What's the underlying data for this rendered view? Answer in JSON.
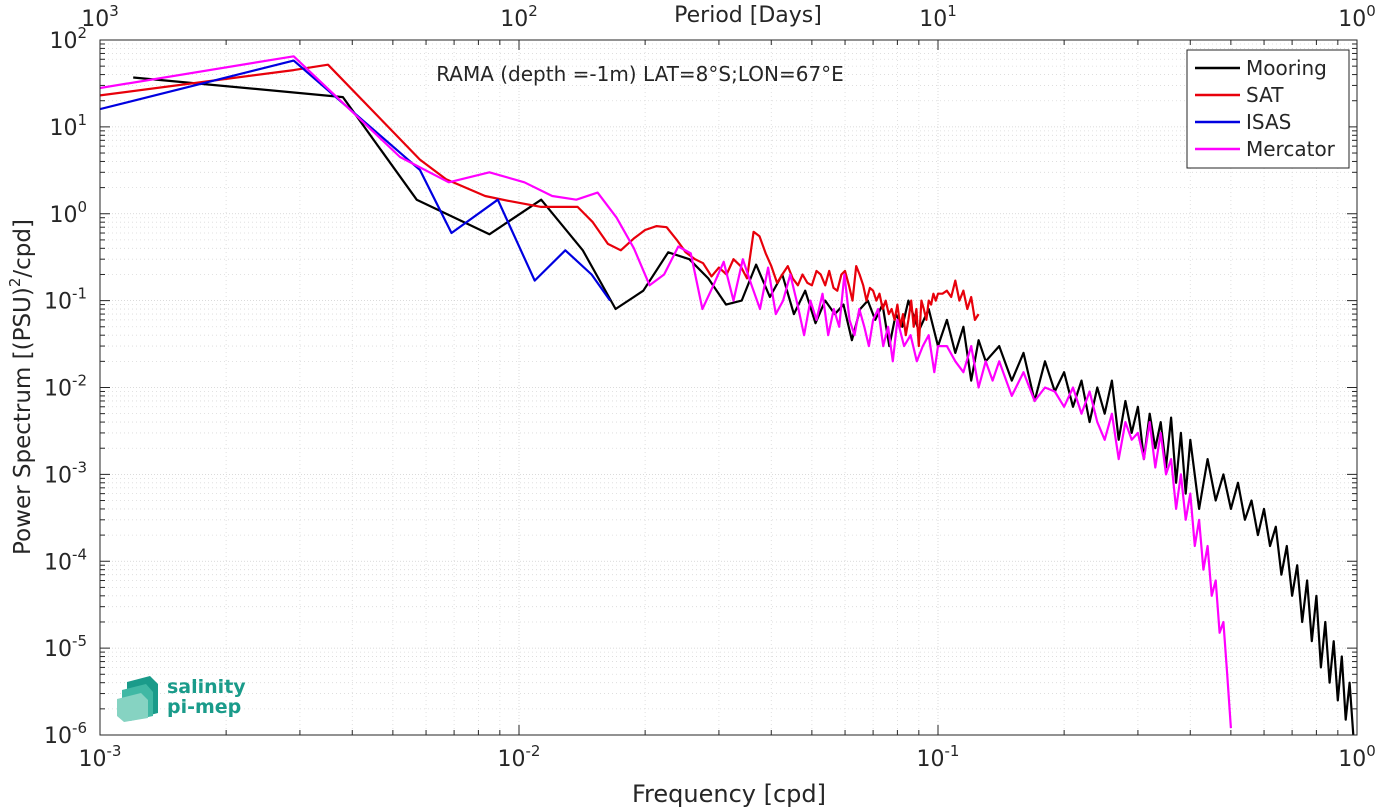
{
  "chart_data": {
    "type": "line",
    "title": "RAMA (depth =-1m) LAT=8°S;LON=67°E",
    "xlabel": "Frequency [cpd]",
    "ylabel_main": "Power Spectrum [(PSU)",
    "ylabel_sup": "2",
    "ylabel_tail": "/cpd]",
    "top_axis_label": "Period [Days]",
    "x_scale": "log",
    "y_scale": "log",
    "xlim": [
      0.001,
      1
    ],
    "ylim": [
      1e-06,
      100
    ],
    "grid": true,
    "minor_grid": true,
    "legend_position": "top-right",
    "x_ticks": [
      {
        "value": 0.001,
        "base": "10",
        "exp": "-3"
      },
      {
        "value": 0.01,
        "base": "10",
        "exp": "-2"
      },
      {
        "value": 0.1,
        "base": "10",
        "exp": "-1"
      },
      {
        "value": 1,
        "base": "10",
        "exp": "0"
      }
    ],
    "y_ticks": [
      {
        "value": 100,
        "base": "10",
        "exp": "2"
      },
      {
        "value": 10,
        "base": "10",
        "exp": "1"
      },
      {
        "value": 1,
        "base": "10",
        "exp": "0"
      },
      {
        "value": 0.1,
        "base": "10",
        "exp": "-1"
      },
      {
        "value": 0.01,
        "base": "10",
        "exp": "-2"
      },
      {
        "value": 0.001,
        "base": "10",
        "exp": "-3"
      },
      {
        "value": 0.0001,
        "base": "10",
        "exp": "-4"
      },
      {
        "value": 1e-05,
        "base": "10",
        "exp": "-5"
      },
      {
        "value": 1e-06,
        "base": "10",
        "exp": "-6"
      }
    ],
    "top_ticks": [
      {
        "freq": 0.001,
        "base": "10",
        "exp": "3"
      },
      {
        "freq": 0.01,
        "base": "10",
        "exp": "2"
      },
      {
        "freq": 0.1,
        "base": "10",
        "exp": "1"
      },
      {
        "freq": 1,
        "base": "10",
        "exp": "0"
      }
    ],
    "series": [
      {
        "name": "Mooring",
        "color": "#000000",
        "x": [
          0.0012,
          0.0038,
          0.0057,
          0.0085,
          0.0113,
          0.0142,
          0.017,
          0.0198,
          0.0227,
          0.0255,
          0.0283,
          0.0312,
          0.034,
          0.0368,
          0.0397,
          0.0425,
          0.0453,
          0.0482,
          0.051,
          0.0538,
          0.0567,
          0.0595,
          0.0623,
          0.0652,
          0.068,
          0.0708,
          0.0737,
          0.0765,
          0.0793,
          0.0822,
          0.085,
          0.09,
          0.095,
          0.1,
          0.105,
          0.11,
          0.115,
          0.12,
          0.125,
          0.13,
          0.14,
          0.15,
          0.16,
          0.17,
          0.18,
          0.19,
          0.2,
          0.21,
          0.22,
          0.23,
          0.24,
          0.25,
          0.26,
          0.27,
          0.28,
          0.29,
          0.3,
          0.31,
          0.32,
          0.33,
          0.34,
          0.35,
          0.36,
          0.37,
          0.38,
          0.39,
          0.4,
          0.42,
          0.44,
          0.46,
          0.48,
          0.5,
          0.52,
          0.54,
          0.56,
          0.58,
          0.6,
          0.62,
          0.64,
          0.66,
          0.68,
          0.7,
          0.72,
          0.74,
          0.76,
          0.78,
          0.8,
          0.82,
          0.84,
          0.86,
          0.88,
          0.9,
          0.92,
          0.94,
          0.96,
          0.98
        ],
        "y": [
          37,
          22,
          1.45,
          0.58,
          1.45,
          0.38,
          0.08,
          0.13,
          0.36,
          0.3,
          0.18,
          0.09,
          0.1,
          0.26,
          0.11,
          0.2,
          0.07,
          0.13,
          0.055,
          0.1,
          0.07,
          0.09,
          0.035,
          0.08,
          0.1,
          0.06,
          0.09,
          0.03,
          0.07,
          0.05,
          0.1,
          0.045,
          0.08,
          0.03,
          0.06,
          0.025,
          0.05,
          0.012,
          0.035,
          0.02,
          0.03,
          0.012,
          0.025,
          0.007,
          0.02,
          0.009,
          0.015,
          0.006,
          0.012,
          0.004,
          0.01,
          0.005,
          0.012,
          0.0025,
          0.007,
          0.003,
          0.006,
          0.0015,
          0.005,
          0.002,
          0.004,
          0.0012,
          0.0045,
          0.0008,
          0.003,
          0.0006,
          0.0025,
          0.0004,
          0.0015,
          0.0005,
          0.001,
          0.0004,
          0.0008,
          0.0003,
          0.0005,
          0.0002,
          0.0004,
          0.00015,
          0.00025,
          7e-05,
          0.00015,
          4e-05,
          9e-05,
          2e-05,
          6e-05,
          1.2e-05,
          4e-05,
          6e-06,
          2e-05,
          4e-06,
          1.2e-05,
          2.5e-06,
          8e-06,
          1.5e-06,
          4e-06,
          1e-06
        ]
      },
      {
        "name": "SAT",
        "color": "#e8000b",
        "x": [
          0.001,
          0.0029,
          0.0035,
          0.0058,
          0.0067,
          0.0083,
          0.0095,
          0.0113,
          0.0125,
          0.0138,
          0.015,
          0.0163,
          0.0175,
          0.0188,
          0.02,
          0.0213,
          0.0225,
          0.0238,
          0.025,
          0.0263,
          0.0275,
          0.0288,
          0.03,
          0.0313,
          0.0325,
          0.0338,
          0.035,
          0.0363,
          0.0375,
          0.0388,
          0.04,
          0.0413,
          0.0425,
          0.0438,
          0.045,
          0.0463,
          0.0475,
          0.0488,
          0.05,
          0.0513,
          0.0525,
          0.0538,
          0.055,
          0.0563,
          0.0575,
          0.0588,
          0.06,
          0.0613,
          0.0625,
          0.0638,
          0.065,
          0.0663,
          0.0675,
          0.0688,
          0.07,
          0.0713,
          0.0725,
          0.0738,
          0.075,
          0.0763,
          0.0775,
          0.0788,
          0.08,
          0.0813,
          0.0825,
          0.0838,
          0.085,
          0.0863,
          0.0875,
          0.0888,
          0.09,
          0.0913,
          0.0925,
          0.0938,
          0.095,
          0.0963,
          0.0975,
          0.0988,
          0.1,
          0.1025,
          0.105,
          0.1075,
          0.11,
          0.1125,
          0.115,
          0.1175,
          0.12,
          0.1225,
          0.125
        ],
        "y": [
          23,
          45,
          52,
          4.2,
          2.5,
          1.6,
          1.4,
          1.2,
          1.2,
          1.2,
          0.8,
          0.45,
          0.38,
          0.52,
          0.65,
          0.72,
          0.7,
          0.5,
          0.36,
          0.3,
          0.27,
          0.19,
          0.24,
          0.2,
          0.3,
          0.25,
          0.18,
          0.62,
          0.55,
          0.35,
          0.25,
          0.16,
          0.2,
          0.25,
          0.18,
          0.15,
          0.2,
          0.16,
          0.15,
          0.22,
          0.2,
          0.15,
          0.22,
          0.14,
          0.13,
          0.2,
          0.22,
          0.15,
          0.1,
          0.25,
          0.2,
          0.15,
          0.1,
          0.14,
          0.13,
          0.1,
          0.12,
          0.08,
          0.1,
          0.07,
          0.08,
          0.06,
          0.09,
          0.05,
          0.07,
          0.04,
          0.06,
          0.1,
          0.05,
          0.08,
          0.03,
          0.1,
          0.08,
          0.06,
          0.1,
          0.09,
          0.12,
          0.1,
          0.12,
          0.12,
          0.13,
          0.11,
          0.17,
          0.1,
          0.13,
          0.08,
          0.11,
          0.06,
          0.07
        ]
      },
      {
        "name": "ISAS",
        "color": "#0000e0",
        "x": [
          0.001,
          0.0029,
          0.0058,
          0.0069,
          0.0089,
          0.0109,
          0.0129,
          0.0149,
          0.0165
        ],
        "y": [
          16,
          58,
          3.2,
          0.6,
          1.45,
          0.17,
          0.38,
          0.2,
          0.1
        ]
      },
      {
        "name": "Mercator",
        "color": "#ff00ff",
        "x": [
          0.001,
          0.0029,
          0.0052,
          0.0068,
          0.0085,
          0.0103,
          0.012,
          0.0137,
          0.0154,
          0.0171,
          0.0188,
          0.0205,
          0.0222,
          0.024,
          0.0257,
          0.0274,
          0.0291,
          0.0308,
          0.0325,
          0.0342,
          0.0359,
          0.0376,
          0.0393,
          0.041,
          0.0427,
          0.0444,
          0.0462,
          0.0479,
          0.0496,
          0.0513,
          0.053,
          0.0547,
          0.0564,
          0.0581,
          0.0598,
          0.0615,
          0.0632,
          0.0649,
          0.0667,
          0.0684,
          0.07,
          0.072,
          0.074,
          0.076,
          0.078,
          0.08,
          0.083,
          0.086,
          0.089,
          0.092,
          0.095,
          0.098,
          0.1,
          0.105,
          0.11,
          0.115,
          0.12,
          0.125,
          0.13,
          0.135,
          0.14,
          0.15,
          0.16,
          0.17,
          0.18,
          0.19,
          0.2,
          0.21,
          0.22,
          0.23,
          0.24,
          0.25,
          0.26,
          0.27,
          0.28,
          0.29,
          0.3,
          0.31,
          0.32,
          0.33,
          0.34,
          0.35,
          0.36,
          0.37,
          0.38,
          0.39,
          0.4,
          0.41,
          0.42,
          0.43,
          0.44,
          0.45,
          0.46,
          0.47,
          0.48,
          0.49,
          0.5
        ],
        "y": [
          28,
          65,
          4.5,
          2.3,
          3.0,
          2.3,
          1.6,
          1.45,
          1.75,
          0.9,
          0.4,
          0.15,
          0.2,
          0.42,
          0.35,
          0.08,
          0.15,
          0.28,
          0.1,
          0.3,
          0.15,
          0.08,
          0.24,
          0.07,
          0.1,
          0.2,
          0.09,
          0.04,
          0.1,
          0.06,
          0.12,
          0.04,
          0.08,
          0.05,
          0.2,
          0.06,
          0.04,
          0.08,
          0.05,
          0.03,
          0.06,
          0.08,
          0.03,
          0.05,
          0.02,
          0.06,
          0.03,
          0.04,
          0.02,
          0.03,
          0.04,
          0.015,
          0.03,
          0.03,
          0.02,
          0.015,
          0.03,
          0.01,
          0.02,
          0.012,
          0.02,
          0.008,
          0.015,
          0.007,
          0.01,
          0.009,
          0.006,
          0.01,
          0.005,
          0.009,
          0.004,
          0.0025,
          0.005,
          0.0015,
          0.004,
          0.0025,
          0.003,
          0.0015,
          0.004,
          0.0012,
          0.003,
          0.001,
          0.0015,
          0.0004,
          0.001,
          0.0003,
          0.0006,
          0.00015,
          0.0003,
          8e-05,
          0.00015,
          4e-05,
          6e-05,
          1.5e-05,
          2e-05,
          5e-06,
          1.2e-06
        ]
      }
    ]
  },
  "logo": {
    "line1": "salinity",
    "line2": "pi-mep",
    "color": "#1a9b8a"
  }
}
